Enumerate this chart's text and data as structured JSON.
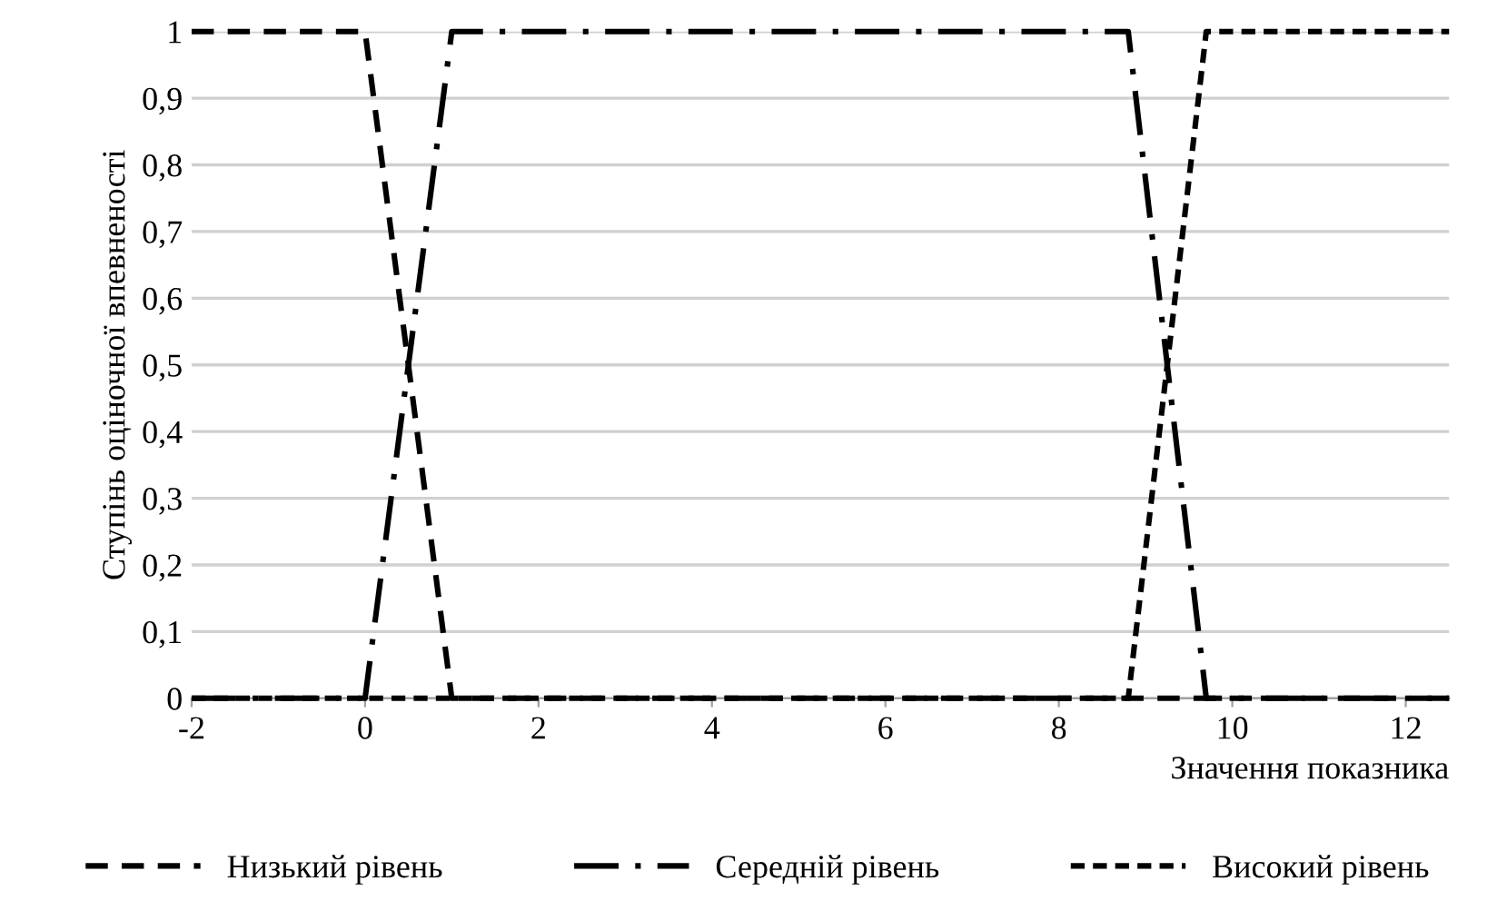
{
  "chart_data": {
    "type": "line",
    "xlabel": "Значення показника",
    "ylabel": "Ступінь оціночної впевненості",
    "xlim": [
      -2,
      12.5
    ],
    "xticks": [
      -2,
      0,
      2,
      4,
      6,
      8,
      10,
      12
    ],
    "ylim": [
      0,
      1
    ],
    "yticks": [
      0,
      {
        "value": 0.1,
        "label": "0,1"
      },
      {
        "value": 0.2,
        "label": "0,2"
      },
      {
        "value": 0.3,
        "label": "0,3"
      },
      {
        "value": 0.4,
        "label": "0,4"
      },
      {
        "value": 0.5,
        "label": "0,5"
      },
      {
        "value": 0.6,
        "label": "0,6"
      },
      {
        "value": 0.7,
        "label": "0,7"
      },
      {
        "value": 0.8,
        "label": "0,8"
      },
      {
        "value": 0.9,
        "label": "0,9"
      },
      1
    ],
    "grid": "y",
    "legend": "bottom",
    "marker": "none",
    "series": [
      {
        "name": "Низький рівень",
        "color": "#000000",
        "line_style": "dashed",
        "x": [
          -2,
          0,
          1,
          12.5
        ],
        "values": [
          1,
          1,
          0,
          0
        ]
      },
      {
        "name": "Середній рівень",
        "color": "#000000",
        "line_style": "dashdot",
        "x": [
          -2,
          0,
          1,
          8.8,
          9.7,
          12.5
        ],
        "values": [
          0,
          0,
          1,
          1,
          0,
          0
        ]
      },
      {
        "name": "Високий рівень",
        "color": "#000000",
        "line_style": "dotted",
        "x": [
          -2,
          8.8,
          9.7,
          12.5
        ],
        "values": [
          0,
          0,
          1,
          1
        ]
      }
    ]
  }
}
